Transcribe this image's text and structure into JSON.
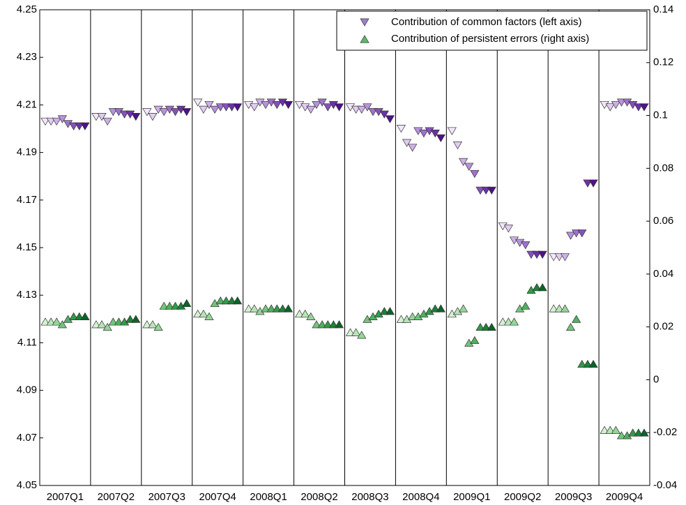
{
  "chart_data": {
    "type": "scatter",
    "categories": [
      "2007Q1",
      "2007Q2",
      "2007Q3",
      "2007Q4",
      "2008Q1",
      "2008Q2",
      "2008Q3",
      "2008Q4",
      "2009Q1",
      "2009Q2",
      "2009Q3",
      "2009Q4"
    ],
    "ylim": [
      4.05,
      4.25
    ],
    "yticks": [
      4.05,
      4.07,
      4.09,
      4.11,
      4.13,
      4.15,
      4.17,
      4.19,
      4.21,
      4.23,
      4.25
    ],
    "y2lim": [
      -0.04,
      0.14
    ],
    "y2ticks": [
      -0.04,
      -0.02,
      0,
      0.02,
      0.04,
      0.06,
      0.08,
      0.1,
      0.12,
      0.14
    ],
    "legend": "top-right",
    "series": [
      {
        "name": "Contribution of common factors (left axis)",
        "marker": "triangle-down",
        "color": "#9b7fd0",
        "colors": [
          "#f3e6fa",
          "#e2ccf2",
          "#cdb0e8",
          "#b792dc",
          "#9f72cd",
          "#8552bb",
          "#6a33a5",
          "#4f118a"
        ],
        "values": [
          [
            4.203,
            4.203,
            4.203,
            4.204,
            4.202,
            4.201,
            4.201,
            4.201
          ],
          [
            4.205,
            4.205,
            4.203,
            4.207,
            4.207,
            4.206,
            4.206,
            4.205
          ],
          [
            4.207,
            4.205,
            4.208,
            4.207,
            4.208,
            4.207,
            4.208,
            4.207
          ],
          [
            4.211,
            4.208,
            4.21,
            4.208,
            4.209,
            4.209,
            4.209,
            4.209
          ],
          [
            4.21,
            4.209,
            4.211,
            4.21,
            4.211,
            4.21,
            4.211,
            4.21
          ],
          [
            4.21,
            4.209,
            4.208,
            4.21,
            4.211,
            4.209,
            4.21,
            4.209
          ],
          [
            4.209,
            4.208,
            4.208,
            4.209,
            4.207,
            4.207,
            4.206,
            4.204
          ],
          [
            4.2,
            4.194,
            4.192,
            4.199,
            4.198,
            4.199,
            4.198,
            4.196
          ],
          [
            4.199,
            4.193,
            4.186,
            4.184,
            4.181,
            4.174,
            4.174,
            4.174
          ],
          [
            4.159,
            4.158,
            4.153,
            4.152,
            4.151,
            4.147,
            4.147,
            4.147
          ],
          [
            4.146,
            4.146,
            4.146,
            4.155,
            4.156,
            4.156,
            4.177,
            4.177
          ],
          [
            4.21,
            4.209,
            4.21,
            4.211,
            4.211,
            4.21,
            4.209,
            4.209
          ]
        ]
      },
      {
        "name": "Contribution of persistent errors (right axis)",
        "marker": "triangle-up",
        "axis": "y2",
        "color": "#5fb86a",
        "colors": [
          "#d4f2d2",
          "#b6e6b4",
          "#94d697",
          "#72c47a",
          "#50b05f",
          "#339a48",
          "#1c8036",
          "#0a6428"
        ],
        "values": [
          [
            0.022,
            0.022,
            0.022,
            0.021,
            0.023,
            0.024,
            0.024,
            0.024
          ],
          [
            0.021,
            0.021,
            0.02,
            0.022,
            0.022,
            0.022,
            0.023,
            0.023
          ],
          [
            0.021,
            0.021,
            0.02,
            0.028,
            0.028,
            0.028,
            0.028,
            0.029
          ],
          [
            0.025,
            0.025,
            0.024,
            0.029,
            0.03,
            0.03,
            0.03,
            0.03
          ],
          [
            0.027,
            0.027,
            0.026,
            0.027,
            0.027,
            0.027,
            0.027,
            0.027
          ],
          [
            0.025,
            0.025,
            0.024,
            0.021,
            0.021,
            0.021,
            0.021,
            0.021
          ],
          [
            0.018,
            0.018,
            0.017,
            0.023,
            0.024,
            0.025,
            0.026,
            0.026
          ],
          [
            0.023,
            0.023,
            0.024,
            0.024,
            0.025,
            0.026,
            0.027,
            0.027
          ],
          [
            0.025,
            0.026,
            0.027,
            0.014,
            0.015,
            0.02,
            0.02,
            0.02
          ],
          [
            0.022,
            0.022,
            0.022,
            0.027,
            0.028,
            0.034,
            0.035,
            0.035
          ],
          [
            0.027,
            0.027,
            0.027,
            0.02,
            0.023,
            0.006,
            0.006,
            0.006
          ],
          [
            -0.019,
            -0.019,
            -0.019,
            -0.021,
            -0.021,
            -0.02,
            -0.02,
            -0.02
          ]
        ]
      }
    ]
  }
}
